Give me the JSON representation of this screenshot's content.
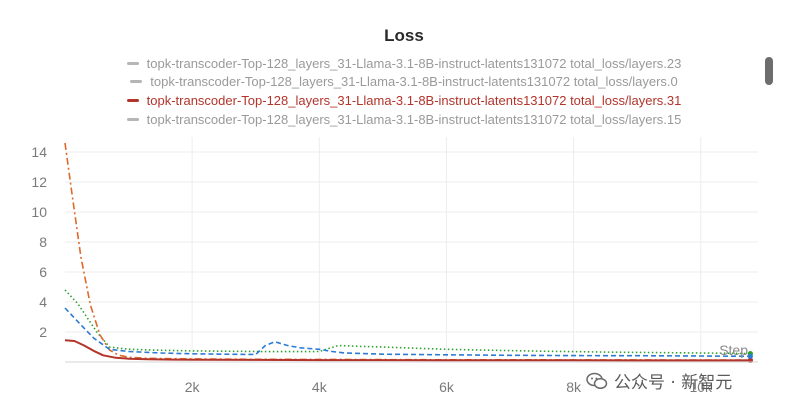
{
  "chart_data": {
    "type": "line",
    "title": "Loss",
    "xlabel": "Step",
    "ylabel": "",
    "xlim": [
      0,
      10900
    ],
    "ylim": [
      0,
      15
    ],
    "x_ticks": [
      {
        "value": 2000,
        "label": "2k"
      },
      {
        "value": 4000,
        "label": "4k"
      },
      {
        "value": 6000,
        "label": "6k"
      },
      {
        "value": 8000,
        "label": "8k"
      },
      {
        "value": 10000,
        "label": "10k"
      }
    ],
    "y_ticks": [
      {
        "value": 2,
        "label": "2"
      },
      {
        "value": 4,
        "label": "4"
      },
      {
        "value": 6,
        "label": "6"
      },
      {
        "value": 8,
        "label": "8"
      },
      {
        "value": 10,
        "label": "10"
      },
      {
        "value": 12,
        "label": "12"
      },
      {
        "value": 14,
        "label": "14"
      }
    ],
    "grid": true,
    "legend": {
      "position": "top",
      "entries": [
        {
          "label": "topk-transcoder-Top-128_layers_31-Llama-3.1-8B-instruct-latents131072 total_loss/layers.23",
          "active": false
        },
        {
          "label": "topk-transcoder-Top-128_layers_31-Llama-3.1-8B-instruct-latents131072 total_loss/layers.0",
          "active": false
        },
        {
          "label": "topk-transcoder-Top-128_layers_31-Llama-3.1-8B-instruct-latents131072 total_loss/layers.31",
          "active": true
        },
        {
          "label": "topk-transcoder-Top-128_layers_31-Llama-3.1-8B-instruct-latents131072 total_loss/layers.15",
          "active": false
        }
      ]
    },
    "series": [
      {
        "name": "topk-transcoder-Top-128_layers_31-Llama-3.1-8B-instruct-latents131072 total_loss/layers.23",
        "color": "#2ca02c",
        "dash": "dotted",
        "x": [
          0,
          200,
          500,
          700,
          1000,
          1500,
          2000,
          2500,
          3000,
          3500,
          4000,
          4300,
          4600,
          5000,
          5500,
          6000,
          6500,
          7000,
          7500,
          8000,
          8500,
          9000,
          9500,
          10000,
          10500,
          10780
        ],
        "y": [
          4.8,
          3.9,
          2.0,
          1.0,
          0.85,
          0.78,
          0.74,
          0.72,
          0.7,
          0.69,
          0.7,
          1.1,
          1.05,
          1.0,
          0.92,
          0.85,
          0.8,
          0.76,
          0.72,
          0.69,
          0.66,
          0.64,
          0.62,
          0.6,
          0.58,
          0.56
        ]
      },
      {
        "name": "topk-transcoder-Top-128_layers_31-Llama-3.1-8B-instruct-latents131072 total_loss/layers.0",
        "color": "#e0692a",
        "dash": "dashdot",
        "x": [
          0,
          100,
          250,
          400,
          550,
          700,
          850,
          1000,
          1300,
          1700,
          2200,
          3000,
          4000,
          5000,
          6000,
          7000,
          8000,
          9000,
          10000,
          10780
        ],
        "y": [
          14.6,
          11.5,
          7.0,
          3.8,
          1.8,
          0.8,
          0.45,
          0.32,
          0.25,
          0.22,
          0.2,
          0.18,
          0.17,
          0.16,
          0.15,
          0.15,
          0.14,
          0.14,
          0.13,
          0.13
        ]
      },
      {
        "name": "topk-transcoder-Top-128_layers_31-Llama-3.1-8B-instruct-latents131072 total_loss/layers.31",
        "color": "#b3342b",
        "dash": "solid",
        "x": [
          0,
          150,
          300,
          450,
          600,
          800,
          1000,
          1300,
          1700,
          2200,
          3000,
          4000,
          5000,
          6000,
          7000,
          8000,
          9000,
          10000,
          10780
        ],
        "y": [
          1.45,
          1.4,
          1.1,
          0.75,
          0.45,
          0.28,
          0.22,
          0.18,
          0.16,
          0.15,
          0.14,
          0.13,
          0.13,
          0.12,
          0.12,
          0.12,
          0.11,
          0.11,
          0.11
        ]
      },
      {
        "name": "topk-transcoder-Top-128_layers_31-Llama-3.1-8B-instruct-latents131072 total_loss/layers.15",
        "color": "#2b7bd6",
        "dash": "dashed",
        "x": [
          0,
          200,
          450,
          700,
          1000,
          1500,
          2000,
          2500,
          3000,
          3150,
          3300,
          3500,
          3700,
          4000,
          4200,
          4400,
          5000,
          6000,
          7000,
          8000,
          9000,
          10000,
          10780
        ],
        "y": [
          3.6,
          2.7,
          1.6,
          0.85,
          0.7,
          0.6,
          0.55,
          0.52,
          0.5,
          1.1,
          1.35,
          1.1,
          0.95,
          0.85,
          0.7,
          0.6,
          0.52,
          0.48,
          0.45,
          0.43,
          0.42,
          0.4,
          0.38
        ]
      }
    ]
  },
  "watermark": {
    "text": "公众号 · 新智元",
    "icon": "wechat-icon"
  }
}
